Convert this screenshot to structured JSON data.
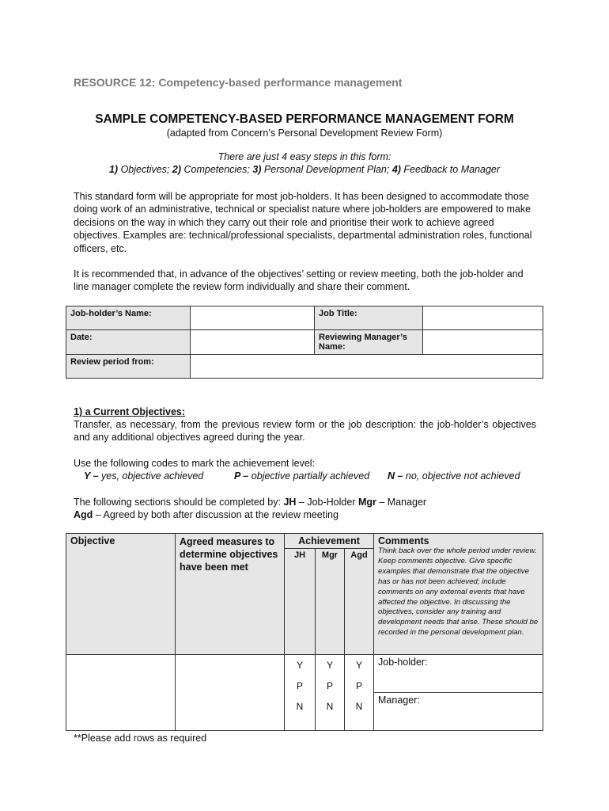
{
  "header": "RESOURCE 12:  Competency-based performance management",
  "title": "SAMPLE COMPETENCY-BASED PERFORMANCE MANAGEMENT FORM",
  "subtitle": "(adapted from Concern’s Personal Development Review Form)",
  "steps_intro": "There are just 4 easy steps in this form:",
  "steps": [
    {
      "n": "1)",
      "t": " Objectives; "
    },
    {
      "n": "2)",
      "t": " Competencies; "
    },
    {
      "n": "3)",
      "t": " Personal Development Plan; "
    },
    {
      "n": "4)",
      "t": " Feedback to Manager"
    }
  ],
  "intro_para": "This standard form will be appropriate for most job-holders. It has been designed to accommodate those doing work of an administrative, technical or specialist nature where job-holders are empowered to make decisions on the way in which they carry out their role and prioritise their work to achieve agreed objectives.   Examples are: technical/professional specialists, departmental administration roles, functional officers, etc.",
  "recommend_para": "It is recommended that, in advance of the objectives’ setting or review meeting, both the job-holder and line manager complete the review form individually and share their comment.",
  "details_table": {
    "job_holder_name": "Job-holder’s Name:",
    "job_title": "Job Title:",
    "date": "Date:",
    "reviewing_manager": "Reviewing Manager’s Name:",
    "review_period": "Review period from:"
  },
  "section1": {
    "heading": "1) a Current Objectives:",
    "text": "Transfer, as necessary, from the previous review form or the job description: the job-holder’s objectives and any additional objectives agreed during the year.",
    "codes_intro": "Use the following codes to mark the achievement level:",
    "codes": [
      {
        "k": "Y –",
        "v": " yes, objective achieved"
      },
      {
        "k": "P –",
        "v": " objective partially achieved"
      },
      {
        "k": "N –",
        "v": " no, objective not achieved"
      }
    ],
    "completed_by": {
      "intro": "The following sections should be completed by:  ",
      "jh": "JH",
      "jh_t": " – Job-Holder   ",
      "mgr": "Mgr",
      "mgr_t": " – Manager",
      "agd": "Agd",
      "agd_t": " – Agreed by both after discussion at the review meeting"
    }
  },
  "objectives_table": {
    "objective": "Objective",
    "measures": "Agreed measures to determine objectives have been met",
    "achievement": "Achievement",
    "jh": "JH",
    "mgr": "Mgr",
    "agd": "Agd",
    "comments": "Comments",
    "comments_hint": "Think back over the whole period under review. Keep comments objective. Give specific examples that demonstrate that the objective has or has not been achieved; include comments on any external events that have affected the objective. In discussing the objectives, consider any training and development needs that arise. These should be recorded in the personal development plan.",
    "codes": [
      "Y",
      "P",
      "N"
    ],
    "job_holder": "Job-holder:",
    "manager": "Manager:"
  },
  "footnote": "**Please add rows as required"
}
